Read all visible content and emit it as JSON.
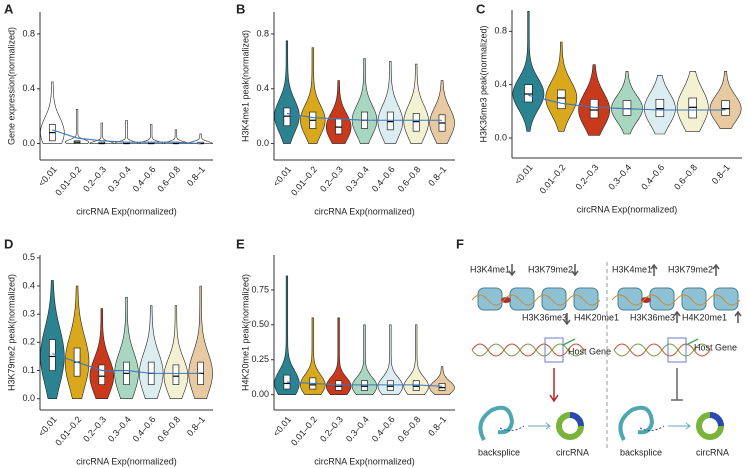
{
  "chart_data": [
    {
      "type": "violin",
      "label": "A",
      "ylabel": "Gene expression(normalized)",
      "xlabel": "circRNA Exp(normalized)",
      "categories": [
        "<0.01",
        "0.01–0.2",
        "0.2–0.3",
        "0.3–0.4",
        "0.4–0.6",
        "0.6–0.8",
        "0.8–1"
      ],
      "colors": [
        "#ffffff",
        "#ffffff",
        "#ffffff",
        "#ffffff",
        "#ffffff",
        "#ffffff",
        "#ffffff"
      ],
      "ylim": [
        -0.12,
        0.96
      ],
      "yticks": [
        {
          "value": 0,
          "label": "0.0"
        },
        0.4,
        0.8
      ],
      "median": [
        0.08,
        0.01,
        0.0,
        0.0,
        0.0,
        0.0,
        0.0
      ],
      "q1": [
        0.02,
        0.0,
        0.0,
        0.0,
        0.0,
        0.0,
        0.0
      ],
      "q3": [
        0.14,
        0.02,
        0.01,
        0.01,
        0.01,
        0.01,
        0.01
      ],
      "min": [
        0.0,
        0.0,
        0.0,
        0.0,
        0.0,
        0.0,
        0.0
      ],
      "max": [
        0.45,
        0.25,
        0.15,
        0.17,
        0.14,
        0.1,
        0.07
      ],
      "trend": [
        0.1,
        0.04,
        0.02,
        0.01,
        0.01,
        0.01,
        0.0
      ],
      "trend_color": "#3a78b8"
    },
    {
      "type": "violin",
      "label": "B",
      "ylabel": "H3K4me1 peak(normalized)",
      "xlabel": "circRNA Exp(normalized)",
      "categories": [
        "<0.01",
        "0.01–0.2",
        "0.2–0.3",
        "0.3–0.4",
        "0.4–0.6",
        "0.6–0.8",
        "0.8–1"
      ],
      "colors": [
        "#2b8290",
        "#d9a81c",
        "#c93a1c",
        "#a9d6c1",
        "#dcedf2",
        "#f4f1d2",
        "#e8caa2"
      ],
      "ylim": [
        -0.12,
        0.96
      ],
      "yticks": [
        {
          "value": 0,
          "label": "0.0"
        },
        0.4,
        0.8
      ],
      "median": [
        0.2,
        0.17,
        0.12,
        0.17,
        0.16,
        0.16,
        0.15
      ],
      "q1": [
        0.13,
        0.11,
        0.07,
        0.11,
        0.1,
        0.09,
        0.09
      ],
      "q3": [
        0.26,
        0.23,
        0.18,
        0.23,
        0.23,
        0.22,
        0.21
      ],
      "min": [
        0.0,
        0.0,
        0.0,
        0.0,
        0.0,
        0.0,
        0.0
      ],
      "max": [
        0.75,
        0.7,
        0.46,
        0.62,
        0.6,
        0.58,
        0.46
      ],
      "trend": [
        0.22,
        0.19,
        0.18,
        0.17,
        0.17,
        0.17,
        0.17
      ],
      "trend_color": "#3a78b8"
    },
    {
      "type": "violin",
      "label": "C",
      "ylabel": "H3K36me3 peak(normalized)",
      "xlabel": "circRNA Exp(normalized)",
      "categories": [
        "<0.01",
        "0.01–0.2",
        "0.2–0.3",
        "0.3–0.4",
        "0.4–0.6",
        "0.6–0.8",
        "0.8–1"
      ],
      "colors": [
        "#2b8290",
        "#d9a81c",
        "#c93a1c",
        "#a9d6c1",
        "#dcedf2",
        "#f4f1d2",
        "#e8caa2"
      ],
      "ylim": [
        -0.15,
        0.96
      ],
      "yticks": [
        {
          "value": 0,
          "label": "0.0"
        },
        0.4,
        0.8
      ],
      "median": [
        0.33,
        0.3,
        0.21,
        0.22,
        0.22,
        0.23,
        0.22
      ],
      "q1": [
        0.27,
        0.22,
        0.15,
        0.17,
        0.16,
        0.15,
        0.17
      ],
      "q3": [
        0.4,
        0.36,
        0.29,
        0.28,
        0.29,
        0.3,
        0.28
      ],
      "min": [
        0.05,
        0.05,
        0.02,
        0.03,
        0.03,
        0.05,
        0.07
      ],
      "max": [
        0.95,
        0.72,
        0.55,
        0.5,
        0.47,
        0.5,
        0.5
      ],
      "trend": [
        0.32,
        0.26,
        0.23,
        0.22,
        0.21,
        0.21,
        0.21
      ],
      "trend_color": "#3a78b8"
    },
    {
      "type": "violin",
      "label": "D",
      "ylabel": "H3K79me2 peak(normalized)",
      "xlabel": "circRNA Exp(normalized)",
      "categories": [
        "<0.01",
        "0.01–0.2",
        "0.2–0.3",
        "0.3–0.4",
        "0.4–0.6",
        "0.6–0.8",
        "0.8–1"
      ],
      "colors": [
        "#2b8290",
        "#d9a81c",
        "#c93a1c",
        "#a9d6c1",
        "#dcedf2",
        "#f4f1d2",
        "#e8caa2"
      ],
      "ylim": [
        -0.04,
        0.51
      ],
      "yticks": [
        {
          "value": 0,
          "label": "0.0"
        },
        0.1,
        0.2,
        0.3,
        0.4,
        0.5
      ],
      "median": [
        0.15,
        0.13,
        0.08,
        0.09,
        0.09,
        0.08,
        0.09
      ],
      "q1": [
        0.1,
        0.08,
        0.05,
        0.05,
        0.05,
        0.05,
        0.05
      ],
      "q3": [
        0.21,
        0.18,
        0.12,
        0.13,
        0.13,
        0.12,
        0.13
      ],
      "min": [
        0.0,
        0.0,
        0.0,
        0.0,
        0.0,
        0.0,
        0.0
      ],
      "max": [
        0.42,
        0.4,
        0.32,
        0.36,
        0.33,
        0.33,
        0.4
      ],
      "trend": [
        0.16,
        0.13,
        0.1,
        0.1,
        0.09,
        0.09,
        0.09
      ],
      "trend_color": "#3a78b8"
    },
    {
      "type": "violin",
      "label": "E",
      "ylabel": "H4K20me1 peak(normalized)",
      "xlabel": "circRNA Exp(normalized)",
      "categories": [
        "<0.01",
        "0.01–0.2",
        "0.2–0.3",
        "0.3–0.4",
        "0.4–0.6",
        "0.6–0.8",
        "0.8–1"
      ],
      "colors": [
        "#2b8290",
        "#d9a81c",
        "#c93a1c",
        "#a9d6c1",
        "#dcedf2",
        "#f4f1d2",
        "#e8caa2"
      ],
      "ylim": [
        -0.11,
        1.0
      ],
      "yticks": [
        {
          "value": 0,
          "label": "0.00"
        },
        0.25,
        {
          "value": 0.5,
          "label": "0.50"
        },
        0.75
      ],
      "median": [
        0.08,
        0.07,
        0.06,
        0.06,
        0.06,
        0.06,
        0.05
      ],
      "q1": [
        0.04,
        0.04,
        0.03,
        0.03,
        0.03,
        0.03,
        0.03
      ],
      "q3": [
        0.14,
        0.12,
        0.1,
        0.1,
        0.1,
        0.1,
        0.08
      ],
      "min": [
        0.0,
        0.0,
        0.0,
        0.0,
        0.0,
        0.0,
        0.0
      ],
      "max": [
        0.85,
        0.55,
        0.55,
        0.5,
        0.5,
        0.5,
        0.2
      ],
      "trend": [
        0.09,
        0.08,
        0.07,
        0.07,
        0.07,
        0.07,
        0.06
      ],
      "trend_color": "#3a78b8"
    }
  ],
  "diagram": {
    "label": "F",
    "left": {
      "marks": [
        "H3K4me1",
        "H3K79me2",
        "H3K36me3",
        "H4K20me1"
      ],
      "host_gene": "Host Gene",
      "backsplice": "backsplice",
      "product": "circRNA"
    },
    "right": {
      "marks": [
        "H3K4me1",
        "H3K79me2",
        "H3K36me3",
        "H4K20me1"
      ],
      "host_gene": "Host Gene",
      "backsplice": "backsplice",
      "product": "circRNA"
    }
  }
}
